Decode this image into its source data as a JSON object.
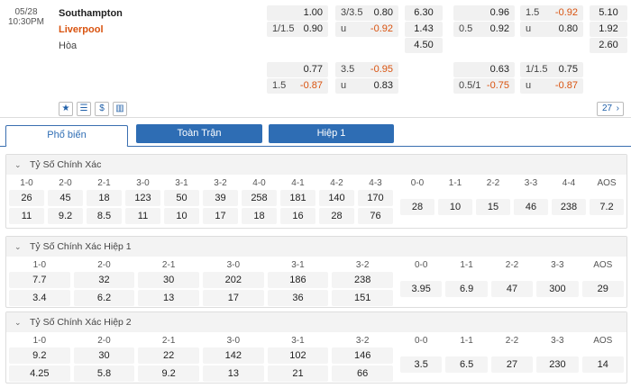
{
  "match": {
    "date": "05/28",
    "time": "10:30PM",
    "home": "Southampton",
    "away": "Liverpool",
    "draw": "Hòa"
  },
  "odds": {
    "r1": {
      "a_v": "1.00",
      "b_h": "3/3.5",
      "b_v": "0.80",
      "c": "6.30",
      "d_v": "0.96",
      "e_h": "1.5",
      "e_v": "-0.92",
      "f": "5.10"
    },
    "r2": {
      "a_h": "1/1.5",
      "a_v": "0.90",
      "b_h": "u",
      "b_v": "-0.92",
      "c": "1.43",
      "d_h": "0.5",
      "d_v": "0.92",
      "e_h": "u",
      "e_v": "0.80",
      "f": "1.92"
    },
    "r3": {
      "c": "4.50",
      "f": "2.60"
    },
    "r4": {
      "a_v": "0.77",
      "b_h": "3.5",
      "b_v": "-0.95",
      "d_v": "0.63",
      "e_h": "1/1.5",
      "e_v": "0.75"
    },
    "r5": {
      "a_h": "1.5",
      "a_v": "-0.87",
      "b_h": "u",
      "b_v": "0.83",
      "d_h": "0.5/1",
      "d_v": "-0.75",
      "e_h": "u",
      "e_v": "-0.87"
    }
  },
  "toolbar": {
    "more_count": "27",
    "icons": [
      "star-icon",
      "list-icon",
      "dollar-icon",
      "chart-icon"
    ]
  },
  "tabs": [
    "Phổ biến",
    "Toàn Trận",
    "Hiệp 1"
  ],
  "sections": [
    {
      "title": "Tỷ Số Chính Xác",
      "home": {
        "labels": [
          "1-0",
          "2-0",
          "2-1",
          "3-0",
          "3-1",
          "3-2",
          "4-0",
          "4-1",
          "4-2",
          "4-3"
        ],
        "top": [
          "26",
          "45",
          "18",
          "123",
          "50",
          "39",
          "258",
          "181",
          "140",
          "170"
        ],
        "bot": [
          "11",
          "9.2",
          "8.5",
          "11",
          "10",
          "17",
          "18",
          "16",
          "28",
          "76"
        ]
      },
      "draw": {
        "labels": [
          "0-0",
          "1-1",
          "2-2",
          "3-3",
          "4-4",
          "AOS"
        ],
        "vals": [
          "28",
          "10",
          "15",
          "46",
          "238",
          "7.2"
        ]
      }
    },
    {
      "title": "Tỷ Số Chính Xác Hiệp 1",
      "home": {
        "labels": [
          "1-0",
          "2-0",
          "2-1",
          "3-0",
          "3-1",
          "3-2"
        ],
        "top": [
          "7.7",
          "32",
          "30",
          "202",
          "186",
          "238"
        ],
        "bot": [
          "3.4",
          "6.2",
          "13",
          "17",
          "36",
          "151"
        ]
      },
      "draw": {
        "labels": [
          "0-0",
          "1-1",
          "2-2",
          "3-3",
          "AOS"
        ],
        "vals": [
          "3.95",
          "6.9",
          "47",
          "300",
          "29"
        ]
      }
    },
    {
      "title": "Tỷ Số Chính Xác Hiệp 2",
      "home": {
        "labels": [
          "1-0",
          "2-0",
          "2-1",
          "3-0",
          "3-1",
          "3-2"
        ],
        "top": [
          "9.2",
          "30",
          "22",
          "142",
          "102",
          "146"
        ],
        "bot": [
          "4.25",
          "5.8",
          "9.2",
          "13",
          "21",
          "66"
        ]
      },
      "draw": {
        "labels": [
          "0-0",
          "1-1",
          "2-2",
          "3-3",
          "AOS"
        ],
        "vals": [
          "3.5",
          "6.5",
          "27",
          "230",
          "14"
        ]
      }
    }
  ],
  "colors": {
    "accent": "#2e6db4",
    "negative": "#d9530f",
    "away": "#d9530f"
  }
}
